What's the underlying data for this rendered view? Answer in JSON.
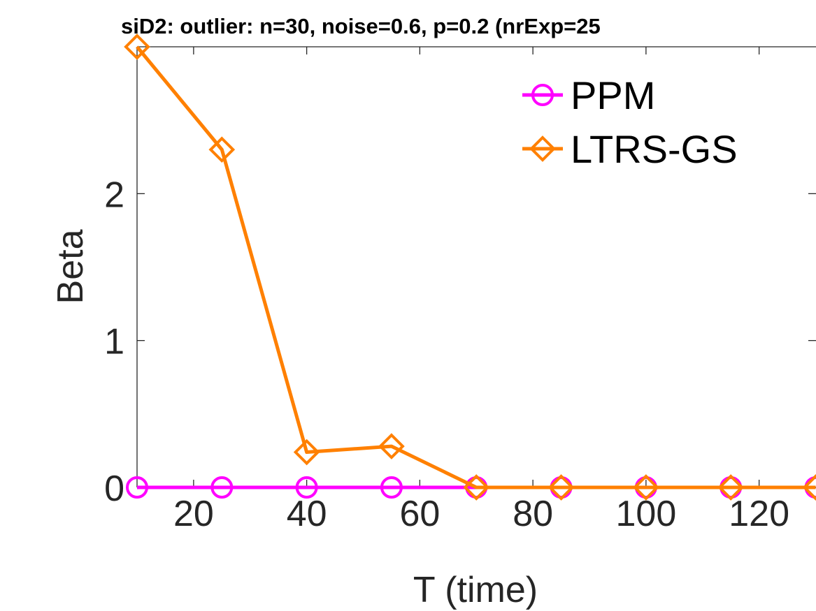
{
  "chart_data": {
    "type": "line",
    "title": "siD2: outlier: n=30, noise=0.6, p=0.2 (nrExp=25",
    "xlabel": "T (time)",
    "ylabel": "Beta",
    "x": [
      10,
      25,
      40,
      55,
      70,
      85,
      100,
      115,
      130
    ],
    "xticks": [
      20,
      40,
      60,
      80,
      100,
      120
    ],
    "yticks": [
      0,
      1,
      2
    ],
    "xlim": [
      10,
      130
    ],
    "ylim": [
      0,
      3
    ],
    "legend_position": "top-right",
    "series": [
      {
        "name": "PPM",
        "color": "#ff00ff",
        "marker": "circle",
        "values": [
          0,
          0,
          0,
          0,
          0,
          0,
          0,
          0,
          0
        ]
      },
      {
        "name": "LTRS-GS",
        "color": "#ff8000",
        "marker": "diamond",
        "values": [
          3.0,
          2.3,
          0.24,
          0.28,
          0,
          0,
          0,
          0,
          0
        ]
      }
    ]
  }
}
